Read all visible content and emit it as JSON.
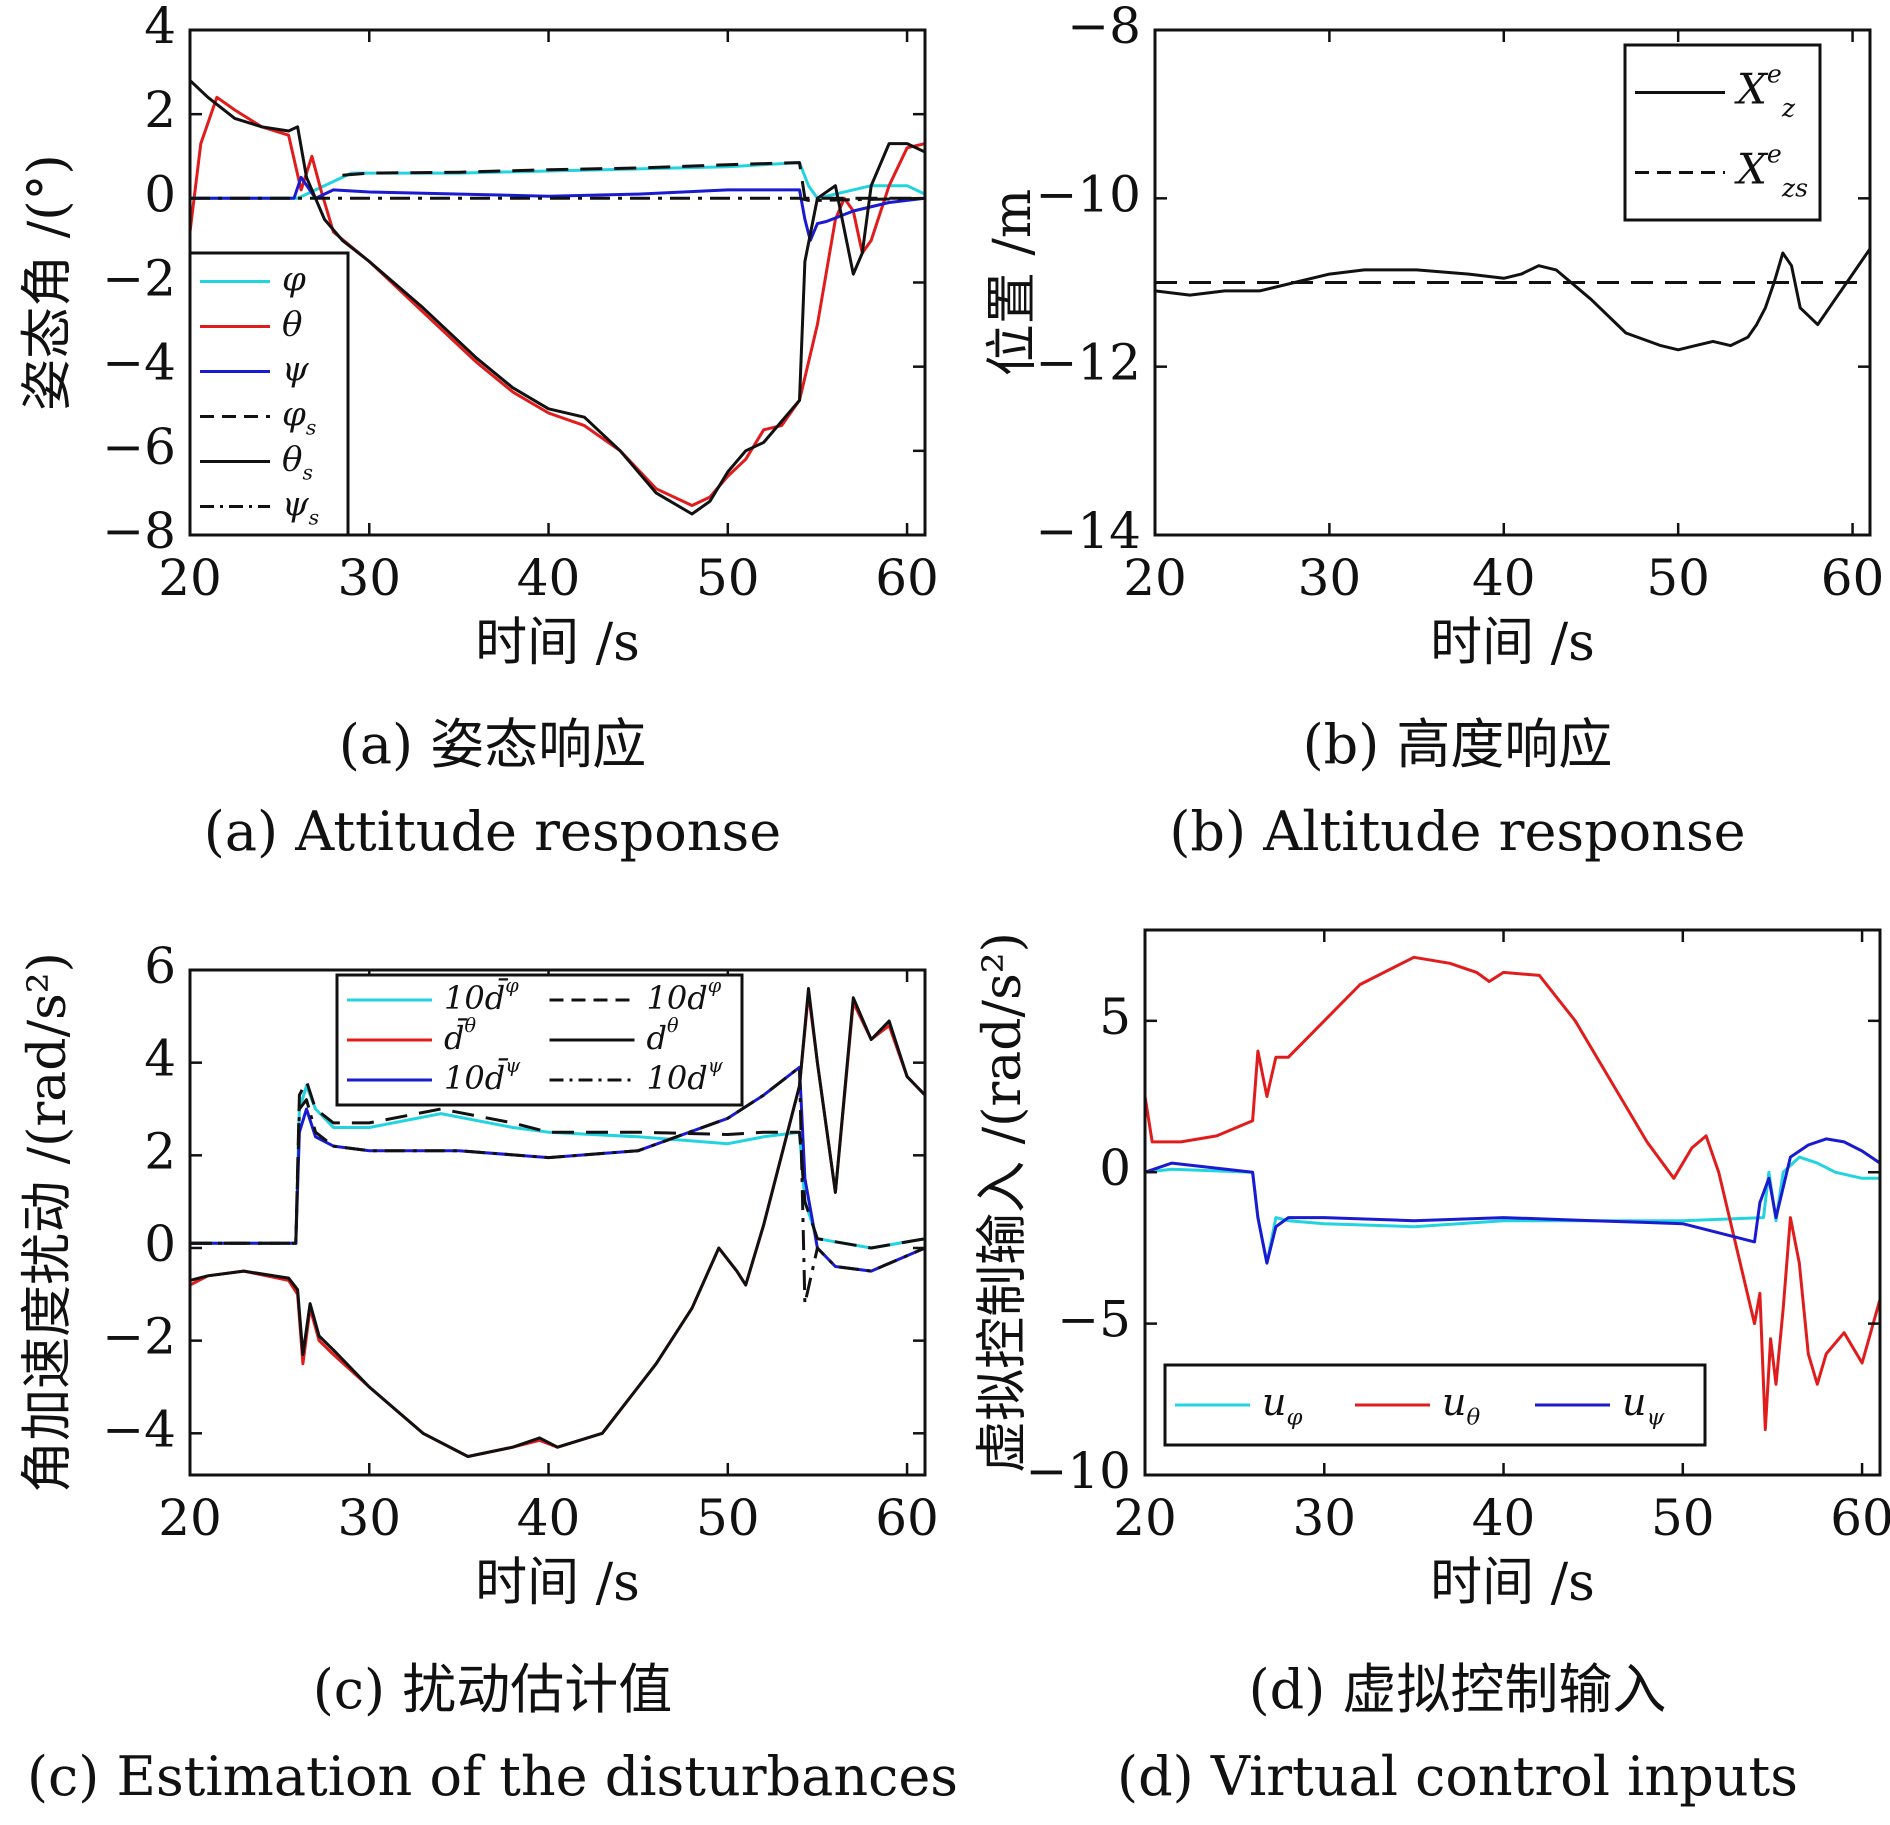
{
  "captions": [
    {
      "cn": "(a) 姿态响应",
      "en": "(a) Attitude response"
    },
    {
      "cn": "(b) 高度响应",
      "en": "(b) Altitude response"
    },
    {
      "cn": "(c) 扰动估计值",
      "en": "(c) Estimation of the disturbances"
    },
    {
      "cn": "(d) 虚拟控制输入",
      "en": "(d) Virtual control inputs"
    }
  ],
  "colors": {
    "cyan": "#22d3e0",
    "red": "#e01c1c",
    "blue": "#1a1ad0",
    "black": "#111111"
  },
  "chart_data": [
    {
      "type": "line",
      "id": "a",
      "xlabel": "时间 /s",
      "ylabel": "姿态角 /(°)",
      "xlim": [
        20,
        61
      ],
      "ylim": [
        -8,
        4
      ],
      "xticks": [
        20,
        30,
        40,
        50,
        60
      ],
      "yticks": [
        -8,
        -6,
        -4,
        -2,
        0,
        2,
        4
      ],
      "legend_position": "left",
      "series": [
        {
          "name": "φ",
          "color": "cyan",
          "dash": "solid",
          "x": [
            20,
            26,
            29,
            35,
            40,
            45,
            50,
            54,
            54.5,
            55,
            56,
            58,
            60,
            61
          ],
          "y": [
            0,
            0,
            0.6,
            0.6,
            0.65,
            0.7,
            0.75,
            0.85,
            0.3,
            0,
            0.1,
            0.3,
            0.3,
            0.1
          ]
        },
        {
          "name": "θ",
          "color": "red",
          "dash": "solid",
          "x": [
            20,
            20.6,
            21.5,
            22.5,
            24,
            25.5,
            26.2,
            26.8,
            27.3,
            28,
            30,
            33,
            36,
            38,
            40,
            42,
            44,
            46,
            48,
            49,
            50,
            51,
            52,
            53,
            54,
            55,
            56,
            56.5,
            57,
            57.5,
            58,
            59,
            60,
            61
          ],
          "y": [
            -0.8,
            1.3,
            2.4,
            2.1,
            1.7,
            1.5,
            0.2,
            1,
            0.2,
            -0.8,
            -1.5,
            -2.7,
            -3.9,
            -4.6,
            -5.1,
            -5.4,
            -6.0,
            -6.9,
            -7.3,
            -7.1,
            -6.6,
            -6.2,
            -5.5,
            -5.4,
            -4.8,
            -3.0,
            -0.5,
            0.0,
            -0.3,
            -1.3,
            -1.0,
            0.3,
            1.2,
            1.3
          ]
        },
        {
          "name": "ψ",
          "color": "blue",
          "dash": "solid",
          "x": [
            20,
            25.8,
            26.2,
            26.6,
            27,
            28,
            30,
            40,
            45,
            50,
            54,
            54.3,
            54.6,
            55,
            55.5,
            57,
            59,
            61
          ],
          "y": [
            0,
            0,
            0.5,
            0.25,
            0,
            0.2,
            0.15,
            0.05,
            0.1,
            0.2,
            0.2,
            -0.5,
            -1.0,
            -0.6,
            -0.55,
            -0.3,
            -0.1,
            0
          ]
        },
        {
          "name": "φ_s",
          "color": "black",
          "dash": "dashed",
          "x": [
            28.5,
            30,
            35,
            40,
            45,
            50,
            54,
            54.3,
            55,
            58,
            61
          ],
          "y": [
            0.55,
            0.6,
            0.62,
            0.68,
            0.72,
            0.8,
            0.85,
            0.0,
            0.0,
            0.0,
            0.0
          ]
        },
        {
          "name": "θ_s",
          "color": "black",
          "dash": "solid",
          "x": [
            20,
            21,
            22.5,
            24,
            25.5,
            26,
            26.5,
            27.5,
            28.5,
            30,
            33,
            36,
            38,
            40,
            42,
            44,
            46,
            48,
            49,
            50,
            51,
            52,
            53,
            54,
            54.3,
            55,
            56,
            57,
            57.5,
            58,
            59,
            60,
            61
          ],
          "y": [
            2.8,
            2.4,
            1.9,
            1.7,
            1.6,
            1.7,
            0.5,
            -0.5,
            -1.0,
            -1.5,
            -2.6,
            -3.8,
            -4.5,
            -5.0,
            -5.2,
            -6.0,
            -7.0,
            -7.5,
            -7.2,
            -6.5,
            -6.0,
            -5.8,
            -5.3,
            -4.8,
            -1.5,
            0,
            0.3,
            -1.8,
            -1.3,
            0.3,
            1.3,
            1.3,
            1.1
          ]
        },
        {
          "name": "ψ_s",
          "color": "black",
          "dash": "dashdot",
          "x": [
            20,
            30,
            40,
            50,
            54,
            54.5,
            55,
            61
          ],
          "y": [
            0,
            0,
            0,
            0,
            0,
            -0.05,
            -0.05,
            0
          ]
        }
      ]
    },
    {
      "type": "line",
      "id": "b",
      "xlabel": "时间 /s",
      "ylabel": "位置 /m",
      "xlim": [
        20,
        61
      ],
      "ylim": [
        -14,
        -8
      ],
      "xticks": [
        20,
        30,
        40,
        50,
        60
      ],
      "yticks": [
        -14,
        -12,
        -10,
        -8
      ],
      "legend_position": "top-right",
      "series": [
        {
          "name": "X_z^e",
          "color": "black",
          "dash": "solid",
          "x": [
            20,
            22,
            24,
            26,
            28,
            30,
            32,
            35,
            38,
            40,
            41,
            42,
            43,
            45,
            47,
            49,
            50,
            51,
            52,
            53,
            54,
            54.5,
            55,
            55.5,
            56,
            56.5,
            57,
            58,
            59,
            60,
            61
          ],
          "y": [
            -11.1,
            -11.15,
            -11.1,
            -11.1,
            -11.0,
            -10.9,
            -10.85,
            -10.85,
            -10.9,
            -10.95,
            -10.9,
            -10.8,
            -10.85,
            -11.2,
            -11.6,
            -11.75,
            -11.8,
            -11.75,
            -11.7,
            -11.75,
            -11.65,
            -11.5,
            -11.3,
            -11.0,
            -10.65,
            -10.8,
            -11.3,
            -11.5,
            -11.2,
            -10.9,
            -10.6
          ]
        },
        {
          "name": "X_zs^e",
          "color": "black",
          "dash": "dashed",
          "x": [
            20,
            61
          ],
          "y": [
            -11,
            -11
          ]
        }
      ]
    },
    {
      "type": "line",
      "id": "c",
      "xlabel": "时间 /s",
      "ylabel": "角加速度扰动 /(rad/s²)",
      "xlim": [
        20,
        61
      ],
      "ylim": [
        -4.9,
        6
      ],
      "xticks": [
        20,
        30,
        40,
        50,
        60
      ],
      "yticks": [
        -4,
        -2,
        0,
        2,
        4,
        6
      ],
      "legend_position": "top",
      "series": [
        {
          "name": "10d̄^φ",
          "color": "cyan",
          "dash": "solid",
          "x": [
            20,
            25.9,
            26.1,
            26.5,
            27,
            28,
            30,
            34,
            38,
            40,
            45,
            50,
            52,
            54,
            54.3,
            55,
            58,
            61
          ],
          "y": [
            0.1,
            0.1,
            3.0,
            3.5,
            3.0,
            2.6,
            2.6,
            2.9,
            2.6,
            2.5,
            2.4,
            2.25,
            2.4,
            2.5,
            1.0,
            0.2,
            0.0,
            0.2
          ]
        },
        {
          "name": "d̄^θ",
          "color": "red",
          "dash": "solid",
          "x": [
            20,
            21,
            23,
            25.5,
            26,
            26.3,
            26.7,
            27.2,
            28,
            30,
            33,
            35.5,
            38,
            39.5,
            40.5,
            43,
            46,
            48,
            49.5,
            50.5,
            51,
            52,
            53,
            54,
            54.5,
            55,
            56,
            57,
            58,
            59,
            60,
            61
          ],
          "y": [
            -0.8,
            -0.6,
            -0.5,
            -0.7,
            -1.0,
            -2.5,
            -1.3,
            -2.0,
            -2.3,
            -3.0,
            -4.0,
            -4.5,
            -4.3,
            -4.15,
            -4.3,
            -4.0,
            -2.5,
            -1.3,
            0,
            -0.5,
            -0.8,
            0.5,
            2.0,
            3.5,
            5.5,
            4.0,
            1.2,
            5.3,
            4.5,
            4.8,
            3.7,
            3.3
          ]
        },
        {
          "name": "10d̄^ψ",
          "color": "blue",
          "dash": "solid",
          "x": [
            20,
            25.9,
            26.1,
            26.5,
            27,
            28,
            30,
            35,
            40,
            45,
            50,
            52,
            54,
            54.3,
            55,
            56,
            58,
            61
          ],
          "y": [
            0.1,
            0.1,
            2.5,
            3.0,
            2.4,
            2.2,
            2.1,
            2.1,
            1.95,
            2.1,
            2.8,
            3.3,
            3.9,
            1.5,
            0.0,
            -0.4,
            -0.5,
            0.0
          ]
        },
        {
          "name": "10d^φ",
          "color": "black",
          "dash": "dashed",
          "x": [
            20,
            25.9,
            26.1,
            26.5,
            27,
            28,
            30,
            34,
            38,
            40,
            45,
            50,
            52,
            54,
            54.3,
            55,
            58,
            61
          ],
          "y": [
            0.1,
            0.1,
            3.3,
            3.6,
            3.0,
            2.7,
            2.7,
            3.0,
            2.7,
            2.5,
            2.5,
            2.45,
            2.5,
            2.5,
            1.0,
            0.2,
            0.0,
            0.2
          ]
        },
        {
          "name": "d^θ",
          "color": "black",
          "dash": "solid",
          "x": [
            20,
            21,
            23,
            25.5,
            26,
            26.3,
            26.7,
            27.2,
            28,
            30,
            33,
            35.5,
            38,
            39.5,
            40.5,
            43,
            46,
            48,
            49.5,
            50.5,
            51,
            52,
            53,
            54,
            54.5,
            55,
            56,
            57,
            58,
            59,
            60,
            61
          ],
          "y": [
            -0.7,
            -0.6,
            -0.5,
            -0.65,
            -0.9,
            -2.3,
            -1.2,
            -1.9,
            -2.2,
            -3.0,
            -4.0,
            -4.5,
            -4.3,
            -4.1,
            -4.3,
            -4.0,
            -2.5,
            -1.3,
            0,
            -0.5,
            -0.8,
            0.5,
            2.0,
            3.5,
            5.6,
            4.0,
            1.2,
            5.4,
            4.5,
            4.9,
            3.7,
            3.3
          ]
        },
        {
          "name": "10d^ψ",
          "color": "black",
          "dash": "dashdot",
          "x": [
            20,
            25.9,
            26.1,
            26.5,
            27,
            28,
            30,
            35,
            40,
            45,
            50,
            52,
            54,
            54.3,
            55,
            56,
            58,
            61
          ],
          "y": [
            0.1,
            0.1,
            3.0,
            3.2,
            2.5,
            2.2,
            2.1,
            2.1,
            1.95,
            2.1,
            2.8,
            3.3,
            3.9,
            -1.2,
            0.0,
            -0.4,
            -0.5,
            0.0
          ]
        }
      ]
    },
    {
      "type": "line",
      "id": "d",
      "xlabel": "时间 /s",
      "ylabel": "虚拟控制输入 /(rad/s²)",
      "xlim": [
        20,
        61
      ],
      "ylim": [
        -10,
        8
      ],
      "xticks": [
        20,
        30,
        40,
        50,
        60
      ],
      "yticks": [
        -10,
        -5,
        0,
        5
      ],
      "legend_position": "bottom",
      "series": [
        {
          "name": "u_φ",
          "color": "cyan",
          "dash": "solid",
          "x": [
            20,
            21.5,
            26,
            26.3,
            26.8,
            27.3,
            28,
            30,
            35,
            40,
            45,
            50,
            54.5,
            54.8,
            55.2,
            55.6,
            56.5,
            57.5,
            58.5,
            60,
            61
          ],
          "y": [
            0,
            0.1,
            0,
            -1.5,
            -3.0,
            -1.5,
            -1.6,
            -1.7,
            -1.8,
            -1.6,
            -1.6,
            -1.6,
            -1.5,
            0,
            -1.6,
            0,
            0.5,
            0.3,
            0,
            -0.2,
            -0.2
          ]
        },
        {
          "name": "u_θ",
          "color": "red",
          "dash": "solid",
          "x": [
            20,
            20.4,
            21,
            22,
            24,
            26,
            26.3,
            26.8,
            27.3,
            28,
            30,
            32,
            35,
            37,
            38.5,
            39.2,
            40,
            42,
            44,
            46,
            48,
            49.5,
            50.5,
            51.3,
            52,
            53,
            54,
            54.3,
            54.6,
            54.9,
            55.2,
            55.6,
            56,
            56.5,
            57,
            57.5,
            58,
            59,
            60,
            61
          ],
          "y": [
            2.5,
            1.0,
            1.0,
            1.0,
            1.2,
            1.7,
            4.0,
            2.5,
            3.8,
            3.8,
            5.0,
            6.2,
            7.1,
            6.9,
            6.6,
            6.3,
            6.6,
            6.5,
            5.0,
            3.0,
            1.0,
            -0.2,
            0.8,
            1.2,
            0,
            -2.5,
            -5.0,
            -4.0,
            -8.5,
            -5.5,
            -7.0,
            -4.5,
            -1.5,
            -3.0,
            -6.0,
            -7.0,
            -6.0,
            -5.3,
            -6.3,
            -4.2
          ]
        },
        {
          "name": "u_ψ",
          "color": "blue",
          "dash": "solid",
          "x": [
            20,
            21.5,
            26,
            26.3,
            26.8,
            27.3,
            28,
            30,
            35,
            40,
            45,
            50,
            52,
            54,
            54.3,
            54.8,
            55.2,
            56,
            57,
            58,
            59,
            60,
            61
          ],
          "y": [
            0,
            0.3,
            0,
            -1.5,
            -3.0,
            -1.8,
            -1.5,
            -1.5,
            -1.6,
            -1.5,
            -1.6,
            -1.7,
            -2.0,
            -2.3,
            -1.0,
            -0.2,
            -1.5,
            0.5,
            0.9,
            1.1,
            1.0,
            0.7,
            0.3
          ]
        }
      ]
    }
  ]
}
